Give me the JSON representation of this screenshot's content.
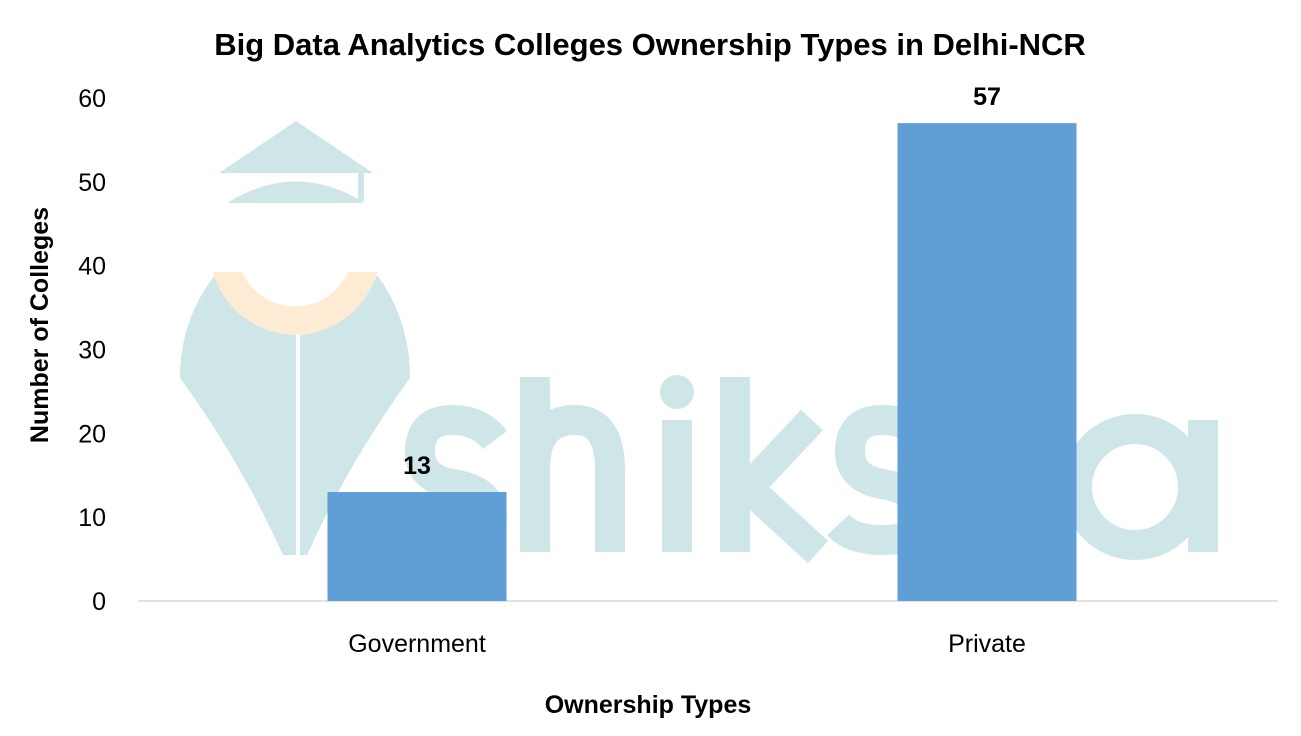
{
  "chart_data": {
    "type": "bar",
    "title": "Big Data Analytics Colleges Ownership Types in Delhi-NCR",
    "xlabel": "Ownership Types",
    "ylabel": "Number of Colleges",
    "categories": [
      "Government",
      "Private"
    ],
    "values": [
      13,
      57
    ],
    "data_labels": [
      "13",
      "57"
    ],
    "ylim": [
      0,
      60
    ],
    "yticks": [
      "0",
      "10",
      "20",
      "30",
      "40",
      "50",
      "60"
    ],
    "grid": false,
    "legend": "none",
    "bar_color": "#5B9BD5",
    "watermark": "shiksha"
  }
}
